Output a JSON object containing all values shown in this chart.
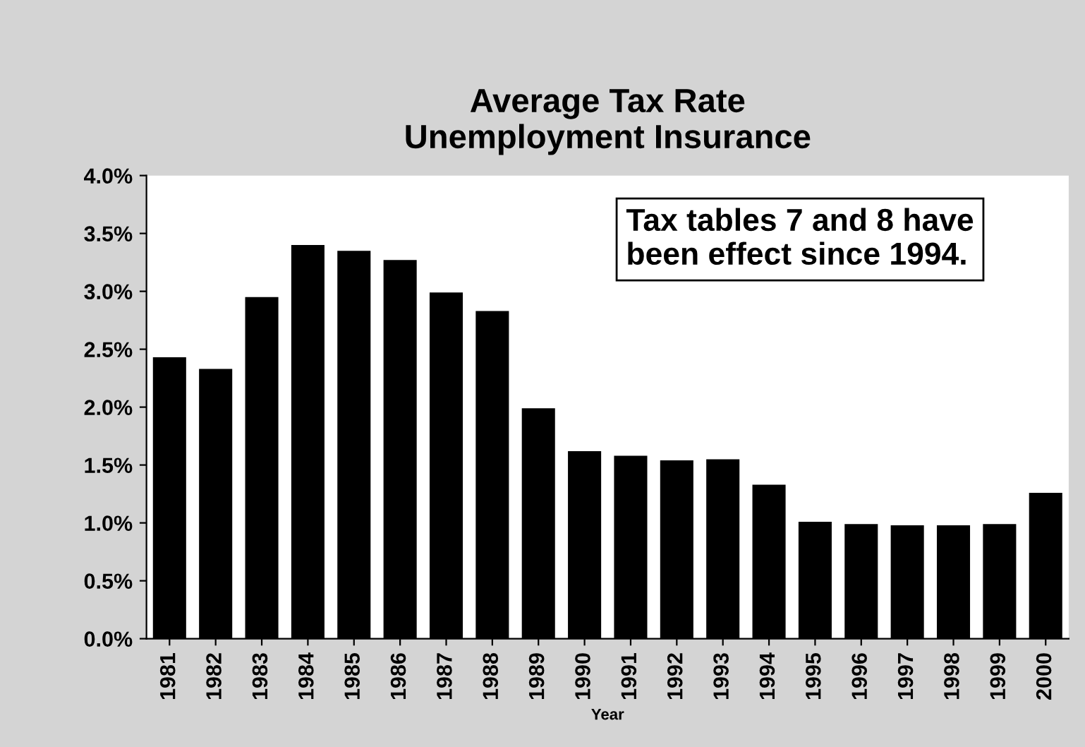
{
  "chart_data": {
    "type": "bar",
    "title": "Average Tax Rate\nUnemployment Insurance",
    "xlabel": "Year",
    "categories": [
      "1981",
      "1982",
      "1983",
      "1984",
      "1985",
      "1986",
      "1987",
      "1988",
      "1989",
      "1990",
      "1991",
      "1992",
      "1993",
      "1994",
      "1995",
      "1996",
      "1997",
      "1998",
      "1999",
      "2000"
    ],
    "values": [
      2.43,
      2.33,
      2.95,
      3.4,
      3.35,
      3.27,
      2.99,
      2.83,
      1.99,
      1.62,
      1.58,
      1.54,
      1.55,
      1.33,
      1.01,
      0.99,
      0.98,
      0.98,
      0.99,
      1.26
    ],
    "color": "#000000",
    "ylim": [
      0,
      4
    ],
    "yticks": [
      {
        "value": 0,
        "label": "0.0%"
      },
      {
        "value": 0.5,
        "label": "0.5%"
      },
      {
        "value": 1,
        "label": "1.0%"
      },
      {
        "value": 1.5,
        "label": "1.5%"
      },
      {
        "value": 2,
        "label": "2.0%"
      },
      {
        "value": 2.5,
        "label": "2.5%"
      },
      {
        "value": 3,
        "label": "3.0%"
      },
      {
        "value": 3.5,
        "label": "3.5%"
      },
      {
        "value": 4,
        "label": "4.0%"
      }
    ],
    "grid": false,
    "annotations": [
      "Tax tables 7 and 8 have\nbeen effect since 1994."
    ]
  }
}
